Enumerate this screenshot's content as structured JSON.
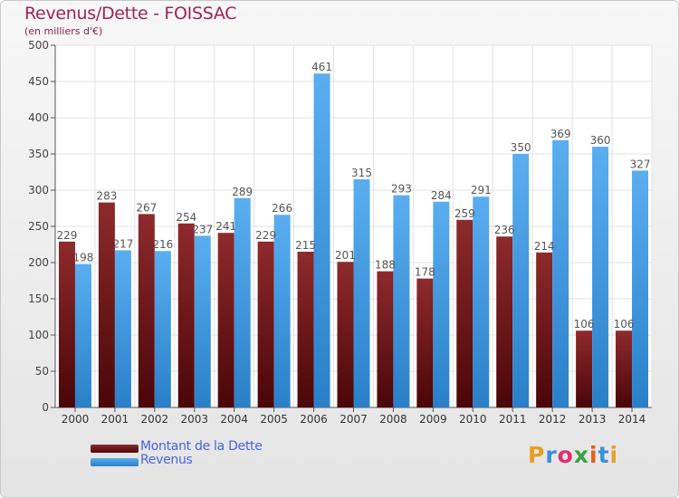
{
  "title": "Revenus/Dette - FOISSAC",
  "subtitle": "(en milliers d'€)",
  "brand": "Proxiti",
  "brand_colors": [
    "#e8a020",
    "#3a90d8",
    "#e03070",
    "#3aa040",
    "#e06020",
    "#3a90d8",
    "#e8a020"
  ],
  "chart_data": {
    "type": "bar",
    "title": "Revenus/Dette - FOISSAC",
    "subtitle": "(en milliers d'€)",
    "categories": [
      "2000",
      "2001",
      "2002",
      "2003",
      "2004",
      "2005",
      "2006",
      "2007",
      "2008",
      "2009",
      "2010",
      "2011",
      "2012",
      "2013",
      "2014"
    ],
    "series": [
      {
        "name": "Montant de la Dette",
        "color": "#7a1518",
        "values": [
          229,
          283,
          267,
          254,
          241,
          229,
          215,
          201,
          188,
          178,
          259,
          236,
          214,
          106,
          106
        ]
      },
      {
        "name": "Revenus",
        "color": "#3b9be0",
        "values": [
          198,
          217,
          216,
          237,
          289,
          266,
          461,
          315,
          293,
          284,
          291,
          350,
          369,
          360,
          327
        ]
      }
    ],
    "ylim": [
      0,
      500
    ],
    "yticks": [
      0,
      50,
      100,
      150,
      200,
      250,
      300,
      350,
      400,
      450,
      500
    ],
    "grid": true,
    "legend_position": "bottom-left"
  }
}
